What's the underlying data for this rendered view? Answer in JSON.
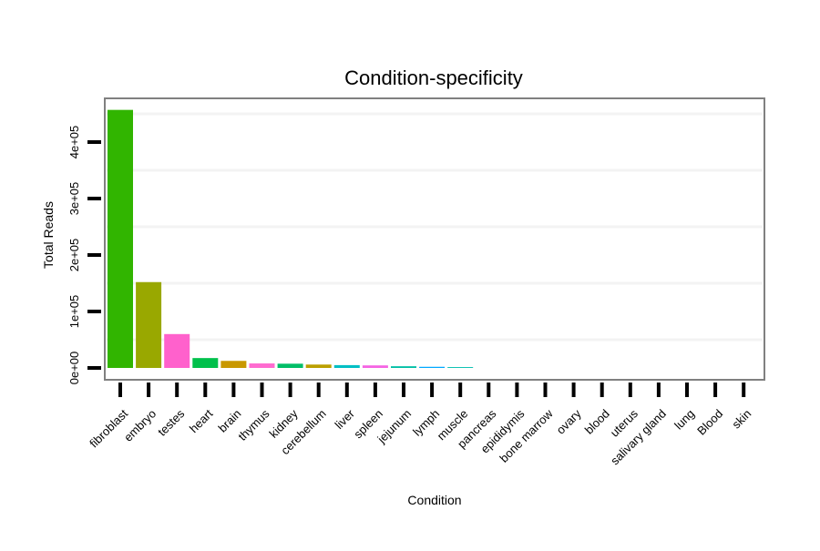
{
  "chart_data": {
    "type": "bar",
    "title": "Condition-specificity",
    "xlabel": "Condition",
    "ylabel": "Total Reads",
    "ylim": [
      0,
      480000
    ],
    "y_ticks": [
      0,
      100000,
      200000,
      300000,
      400000
    ],
    "y_tick_labels": [
      "0e+00",
      "1e+05",
      "2e+05",
      "3e+05",
      "4e+05"
    ],
    "grid": true,
    "legend": "none",
    "categories": [
      "fibroblast",
      "embryo",
      "testes",
      "heart",
      "brain",
      "thymus",
      "kidney",
      "cerebellum",
      "liver",
      "spleen",
      "jejunum",
      "lymph",
      "muscle",
      "pancreas",
      "epididymis",
      "bone marrow",
      "ovary",
      "blood",
      "uterus",
      "salivary gland",
      "lung",
      "Blood",
      "skin"
    ],
    "values": [
      457000,
      152000,
      60000,
      17500,
      12500,
      8000,
      7500,
      6000,
      5000,
      4500,
      3000,
      2000,
      1500,
      0,
      0,
      0,
      0,
      0,
      0,
      0,
      0,
      0,
      0
    ],
    "colors": [
      "#31B500",
      "#99A800",
      "#FF61CC",
      "#00C04B",
      "#C99800",
      "#FF6BD0",
      "#00BE67",
      "#BCA000",
      "#00BFC4",
      "#F564E3",
      "#00BFA5",
      "#00A9FF",
      "#00BFB0",
      "#E76BF3",
      "#00B0F6",
      "#F8766D",
      "#E7861B",
      "#D39200",
      "#A3A500",
      "#7CAE00",
      "#00BA38",
      "#619CFF",
      "#B983FF"
    ]
  }
}
